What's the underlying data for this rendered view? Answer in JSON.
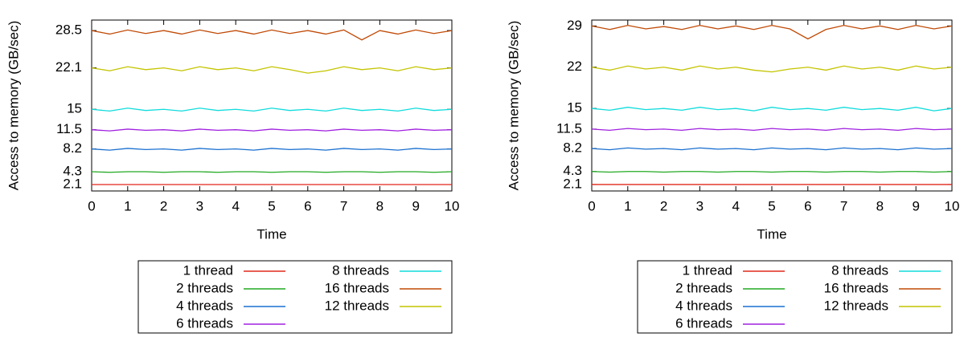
{
  "chart_data": [
    {
      "type": "line",
      "xlabel": "Time",
      "ylabel": "Access to memory (GB/sec)",
      "x": [
        0,
        0.5,
        1,
        1.5,
        2,
        2.5,
        3,
        3.5,
        4,
        4.5,
        5,
        5.5,
        6,
        6.5,
        7,
        7.5,
        8,
        8.5,
        9,
        9.5,
        10
      ],
      "xlim": [
        0,
        10
      ],
      "xticks": [
        0,
        1,
        2,
        3,
        4,
        5,
        6,
        7,
        8,
        9,
        10
      ],
      "ylim": [
        1,
        30.3
      ],
      "yticks": [
        2.1,
        4.3,
        8.2,
        11.5,
        15,
        22.1,
        28.5
      ],
      "legend": "bottom",
      "grid": false,
      "series": [
        {
          "name": "1 thread",
          "color": "#e0281c",
          "values": [
            2.1,
            2.1,
            2.1,
            2.1,
            2.1,
            2.1,
            2.1,
            2.1,
            2.1,
            2.1,
            2.1,
            2.1,
            2.1,
            2.1,
            2.1,
            2.1,
            2.1,
            2.1,
            2.1,
            2.1,
            2.1
          ]
        },
        {
          "name": "2 threads",
          "color": "#22aa22",
          "values": [
            4.3,
            4.2,
            4.3,
            4.3,
            4.2,
            4.3,
            4.3,
            4.2,
            4.3,
            4.3,
            4.2,
            4.3,
            4.3,
            4.2,
            4.3,
            4.3,
            4.2,
            4.3,
            4.3,
            4.2,
            4.3
          ]
        },
        {
          "name": "4 threads",
          "color": "#1a70d0",
          "values": [
            8.2,
            8.0,
            8.3,
            8.1,
            8.2,
            8.0,
            8.3,
            8.1,
            8.2,
            8.0,
            8.3,
            8.1,
            8.2,
            8.0,
            8.3,
            8.1,
            8.2,
            8.0,
            8.3,
            8.1,
            8.2
          ]
        },
        {
          "name": "6 threads",
          "color": "#a020e0",
          "values": [
            11.5,
            11.3,
            11.6,
            11.4,
            11.5,
            11.3,
            11.6,
            11.4,
            11.5,
            11.3,
            11.6,
            11.4,
            11.5,
            11.3,
            11.6,
            11.4,
            11.5,
            11.3,
            11.6,
            11.4,
            11.5
          ]
        },
        {
          "name": "8 threads",
          "color": "#10dcdc",
          "values": [
            15,
            14.7,
            15.2,
            14.8,
            15,
            14.7,
            15.2,
            14.8,
            15,
            14.7,
            15.2,
            14.8,
            15,
            14.7,
            15.2,
            14.8,
            15,
            14.7,
            15.2,
            14.8,
            15
          ]
        },
        {
          "name": "16 threads",
          "color": "#c04a06",
          "values": [
            28.5,
            27.9,
            28.6,
            28.0,
            28.5,
            27.9,
            28.6,
            28.0,
            28.5,
            27.9,
            28.6,
            28.0,
            28.5,
            27.9,
            28.6,
            26.9,
            28.5,
            27.9,
            28.6,
            28.0,
            28.5
          ]
        },
        {
          "name": "12 threads",
          "color": "#c4c400",
          "values": [
            22.1,
            21.6,
            22.3,
            21.8,
            22.1,
            21.6,
            22.3,
            21.8,
            22.1,
            21.6,
            22.3,
            21.8,
            21.2,
            21.6,
            22.3,
            21.8,
            22.1,
            21.6,
            22.3,
            21.8,
            22.1
          ]
        }
      ]
    },
    {
      "type": "line",
      "xlabel": "Time",
      "ylabel": "Access to memory (GB/sec)",
      "x": [
        0,
        0.5,
        1,
        1.5,
        2,
        2.5,
        3,
        3.5,
        4,
        4.5,
        5,
        5.5,
        6,
        6.5,
        7,
        7.5,
        8,
        8.5,
        9,
        9.5,
        10
      ],
      "xlim": [
        0,
        10
      ],
      "xticks": [
        0,
        1,
        2,
        3,
        4,
        5,
        6,
        7,
        8,
        9,
        10
      ],
      "ylim": [
        1,
        30
      ],
      "yticks": [
        2.1,
        4.3,
        8.2,
        11.5,
        15,
        22,
        29
      ],
      "legend": "bottom",
      "grid": false,
      "series": [
        {
          "name": "1 thread",
          "color": "#e0281c",
          "values": [
            2.1,
            2.1,
            2.1,
            2.1,
            2.1,
            2.1,
            2.1,
            2.1,
            2.1,
            2.1,
            2.1,
            2.1,
            2.1,
            2.1,
            2.1,
            2.1,
            2.1,
            2.1,
            2.1,
            2.1,
            2.1
          ]
        },
        {
          "name": "2 threads",
          "color": "#22aa22",
          "values": [
            4.3,
            4.2,
            4.3,
            4.3,
            4.2,
            4.3,
            4.3,
            4.2,
            4.3,
            4.3,
            4.2,
            4.3,
            4.3,
            4.2,
            4.3,
            4.3,
            4.2,
            4.3,
            4.3,
            4.2,
            4.3
          ]
        },
        {
          "name": "4 threads",
          "color": "#1a70d0",
          "values": [
            8.2,
            8.0,
            8.3,
            8.1,
            8.2,
            8.0,
            8.3,
            8.1,
            8.2,
            8.0,
            8.3,
            8.1,
            8.2,
            8.0,
            8.3,
            8.1,
            8.2,
            8.0,
            8.3,
            8.1,
            8.2
          ]
        },
        {
          "name": "6 threads",
          "color": "#a020e0",
          "values": [
            11.5,
            11.3,
            11.6,
            11.4,
            11.5,
            11.3,
            11.6,
            11.4,
            11.5,
            11.3,
            11.6,
            11.4,
            11.5,
            11.3,
            11.6,
            11.4,
            11.5,
            11.3,
            11.6,
            11.4,
            11.5
          ]
        },
        {
          "name": "8 threads",
          "color": "#10dcdc",
          "values": [
            15,
            14.7,
            15.2,
            14.8,
            15,
            14.7,
            15.2,
            14.8,
            15,
            14.6,
            15.2,
            14.8,
            15,
            14.7,
            15.2,
            14.8,
            15,
            14.7,
            15.2,
            14.6,
            15
          ]
        },
        {
          "name": "16 threads",
          "color": "#c04a06",
          "values": [
            29,
            28.4,
            29.1,
            28.5,
            28.9,
            28.4,
            29.1,
            28.5,
            29,
            28.4,
            29.1,
            28.5,
            26.8,
            28.4,
            29.1,
            28.5,
            29,
            28.4,
            29.1,
            28.5,
            29
          ]
        },
        {
          "name": "12 threads",
          "color": "#c4c400",
          "values": [
            22,
            21.5,
            22.2,
            21.7,
            22,
            21.5,
            22.2,
            21.7,
            22,
            21.5,
            21.2,
            21.7,
            22,
            21.5,
            22.2,
            21.7,
            22,
            21.5,
            22.2,
            21.7,
            22
          ]
        }
      ]
    }
  ]
}
